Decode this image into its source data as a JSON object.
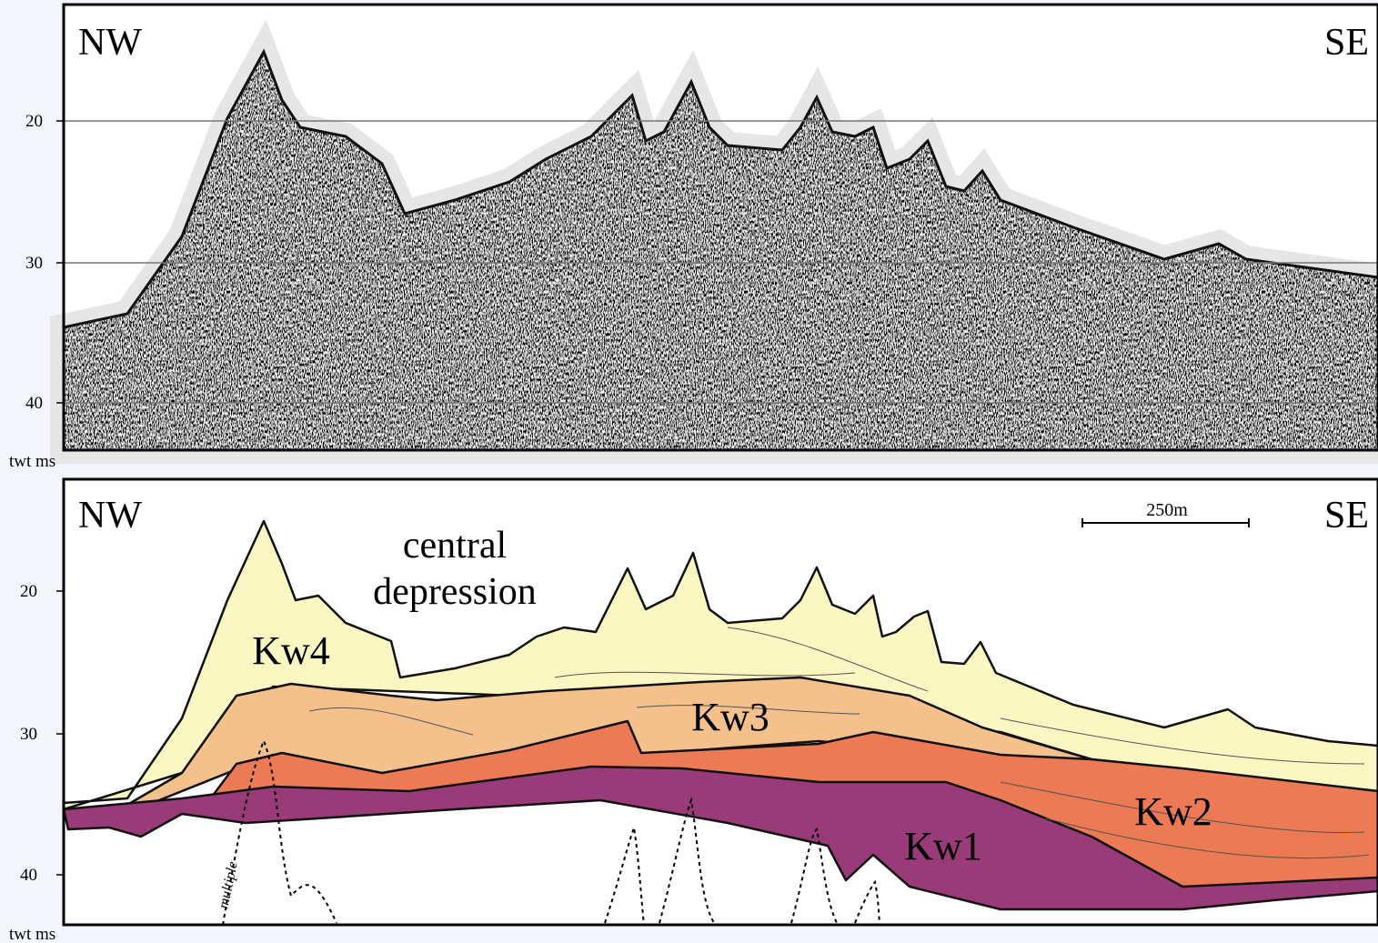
{
  "top_panel": {
    "left_label": "NW",
    "right_label": "SE",
    "yticks": [
      20,
      30,
      40
    ],
    "axis_label": "twt ms"
  },
  "bottom_panel": {
    "left_label": "NW",
    "right_label": "SE",
    "scale_bar": "250m",
    "annotation": [
      "central",
      "depression"
    ],
    "units": [
      "Kw4",
      "Kw3",
      "Kw2",
      "Kw1"
    ],
    "multiple": "multiple",
    "yticks": [
      20,
      30,
      40
    ],
    "axis_label": "twt ms"
  }
}
